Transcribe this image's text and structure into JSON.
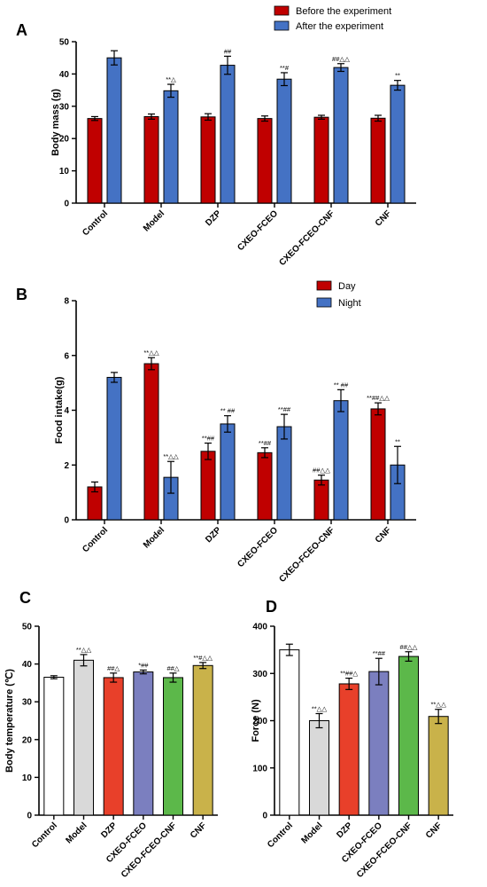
{
  "chart_data": [
    {
      "panel": "A",
      "type": "bar",
      "ylabel": "Body mass (g)",
      "ylim": [
        0,
        50
      ],
      "yticks": [
        0,
        10,
        20,
        30,
        40,
        50
      ],
      "categories": [
        "Control",
        "Model",
        "DZP",
        "CXEO-FCEO",
        "CXEO-FCEO-CNF",
        "CNF"
      ],
      "legend_position": "top-right",
      "series": [
        {
          "name": "Before the experiment",
          "color": "#c00000",
          "values": [
            26.2,
            26.8,
            26.7,
            26.2,
            26.6,
            26.3
          ],
          "errors": [
            0.6,
            0.8,
            1.0,
            0.8,
            0.6,
            0.9
          ],
          "labels": [
            "",
            "",
            "",
            "",
            "",
            ""
          ]
        },
        {
          "name": "After the experiment",
          "color": "#4472c4",
          "values": [
            45.0,
            34.8,
            42.7,
            38.4,
            42.0,
            36.5
          ],
          "errors": [
            2.2,
            2.0,
            2.8,
            2.0,
            1.2,
            1.5
          ],
          "labels": [
            "",
            "**△",
            "##",
            "**#",
            "##△△",
            "**"
          ]
        }
      ]
    },
    {
      "panel": "B",
      "type": "bar",
      "ylabel": "Food intake(g)",
      "ylim": [
        0,
        8
      ],
      "yticks": [
        0,
        2,
        4,
        6,
        8
      ],
      "categories": [
        "Control",
        "Model",
        "DZP",
        "CXEO-FCEO",
        "CXEO-FCEO-CNF",
        "CNF"
      ],
      "legend_position": "top-right",
      "series": [
        {
          "name": "Day",
          "color": "#c00000",
          "values": [
            1.2,
            5.7,
            2.5,
            2.45,
            1.45,
            4.05
          ],
          "errors": [
            0.18,
            0.22,
            0.3,
            0.18,
            0.18,
            0.22
          ],
          "labels": [
            "",
            "**△△",
            "**##",
            "**##",
            "##△△",
            "**##△△"
          ]
        },
        {
          "name": "Night",
          "color": "#4472c4",
          "values": [
            5.2,
            1.55,
            3.5,
            3.4,
            4.35,
            2.0
          ],
          "errors": [
            0.18,
            0.58,
            0.3,
            0.45,
            0.4,
            0.68
          ],
          "labels": [
            "",
            "**△△",
            "** ##",
            "**##",
            "** ##",
            "**"
          ]
        }
      ]
    },
    {
      "panel": "C",
      "type": "bar",
      "ylabel": "Body temperature (℃)",
      "ylim": [
        0,
        50
      ],
      "yticks": [
        0,
        10,
        20,
        30,
        40,
        50
      ],
      "categories": [
        "Control",
        "Model",
        "DZP",
        "CXEO-FCEO",
        "CXEO-FCEO-CNF",
        "CNF"
      ],
      "series": [
        {
          "name": "",
          "colors": [
            "#ffffff",
            "#d9d9d9",
            "#e8402a",
            "#7b7fbf",
            "#5cb84a",
            "#c9b24a"
          ],
          "values": [
            36.5,
            41.0,
            36.4,
            37.9,
            36.4,
            39.6
          ],
          "errors": [
            0.4,
            1.5,
            1.2,
            0.5,
            1.2,
            0.8
          ],
          "labels": [
            "",
            "**△△",
            "##△",
            "*##",
            "##△",
            "**#△△"
          ]
        }
      ]
    },
    {
      "panel": "D",
      "type": "bar",
      "ylabel": "Force (N)",
      "ylim": [
        0,
        400
      ],
      "yticks": [
        0,
        100,
        200,
        300,
        400
      ],
      "categories": [
        "Control",
        "Model",
        "DZP",
        "CXEO-FCEO",
        "CXEO-FCEO-CNF",
        "CNF"
      ],
      "series": [
        {
          "name": "",
          "colors": [
            "#ffffff",
            "#d9d9d9",
            "#e8402a",
            "#7b7fbf",
            "#5cb84a",
            "#c9b24a"
          ],
          "values": [
            350,
            200,
            278,
            304,
            336,
            209
          ],
          "errors": [
            12,
            15,
            12,
            28,
            10,
            15
          ],
          "labels": [
            "",
            "**△△",
            "**##△",
            "**##",
            "##△△",
            "**△△"
          ]
        }
      ]
    }
  ]
}
